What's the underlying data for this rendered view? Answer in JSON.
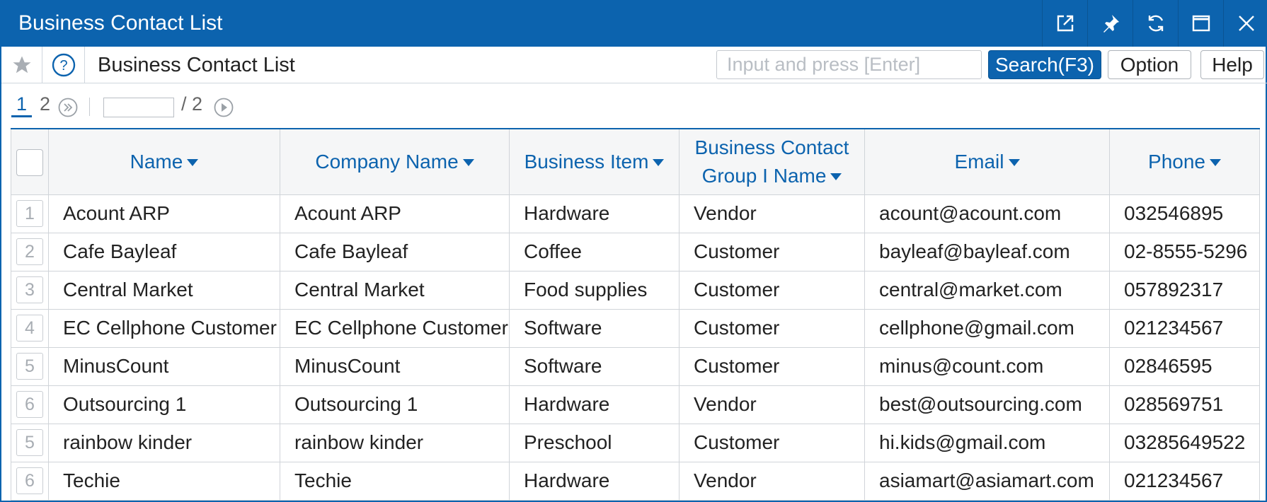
{
  "window": {
    "title": "Business Contact List"
  },
  "toolbar": {
    "page_title": "Business Contact List",
    "search_placeholder": "Input and press [Enter]",
    "search_button": "Search(F3)",
    "option_button": "Option",
    "help_button": "Help"
  },
  "pager": {
    "current": "1",
    "next": "2",
    "total": "/ 2"
  },
  "table": {
    "headers": {
      "name": "Name",
      "company": "Company Name",
      "item": "Business Item",
      "group_line1": "Business Contact",
      "group_line2": "Group I Name",
      "email": "Email",
      "phone": "Phone"
    },
    "rows": [
      {
        "num": "1",
        "name": "Acount ARP",
        "company": "Acount ARP",
        "item": "Hardware",
        "group": "Vendor",
        "email": "acount@acount.com",
        "phone": "032546895"
      },
      {
        "num": "2",
        "name": "Cafe Bayleaf",
        "company": "Cafe Bayleaf",
        "item": "Coffee",
        "group": "Customer",
        "email": "bayleaf@bayleaf.com",
        "phone": "02-8555-5296"
      },
      {
        "num": "3",
        "name": "Central Market",
        "company": "Central Market",
        "item": "Food supplies",
        "group": "Customer",
        "email": "central@market.com",
        "phone": "057892317"
      },
      {
        "num": "4",
        "name": "EC Cellphone Customer",
        "company": "EC Cellphone Customer",
        "item": "Software",
        "group": "Customer",
        "email": "cellphone@gmail.com",
        "phone": "021234567"
      },
      {
        "num": "5",
        "name": "MinusCount",
        "company": "MinusCount",
        "item": "Software",
        "group": "Customer",
        "email": "minus@count.com",
        "phone": "02846595"
      },
      {
        "num": "6",
        "name": "Outsourcing 1",
        "company": "Outsourcing 1",
        "item": "Hardware",
        "group": "Vendor",
        "email": "best@outsourcing.com",
        "phone": "028569751"
      },
      {
        "num": "5",
        "name": "rainbow kinder",
        "company": "rainbow kinder",
        "item": "Preschool",
        "group": "Customer",
        "email": "hi.kids@gmail.com",
        "phone": "03285649522"
      },
      {
        "num": "6",
        "name": "Techie",
        "company": "Techie",
        "item": "Hardware",
        "group": "Vendor",
        "email": "asiamart@asiamart.com",
        "phone": "021234567"
      }
    ]
  },
  "colors": {
    "accent": "#0c63ae",
    "header_bg": "#f5f6f7",
    "border": "#d0d4d9"
  },
  "icons": [
    "popout-icon",
    "pin-icon",
    "refresh-icon",
    "maximize-icon",
    "close-icon",
    "star-icon",
    "help-circle-icon",
    "double-chevron-right-icon",
    "play-next-icon",
    "sort-caret-icon"
  ]
}
